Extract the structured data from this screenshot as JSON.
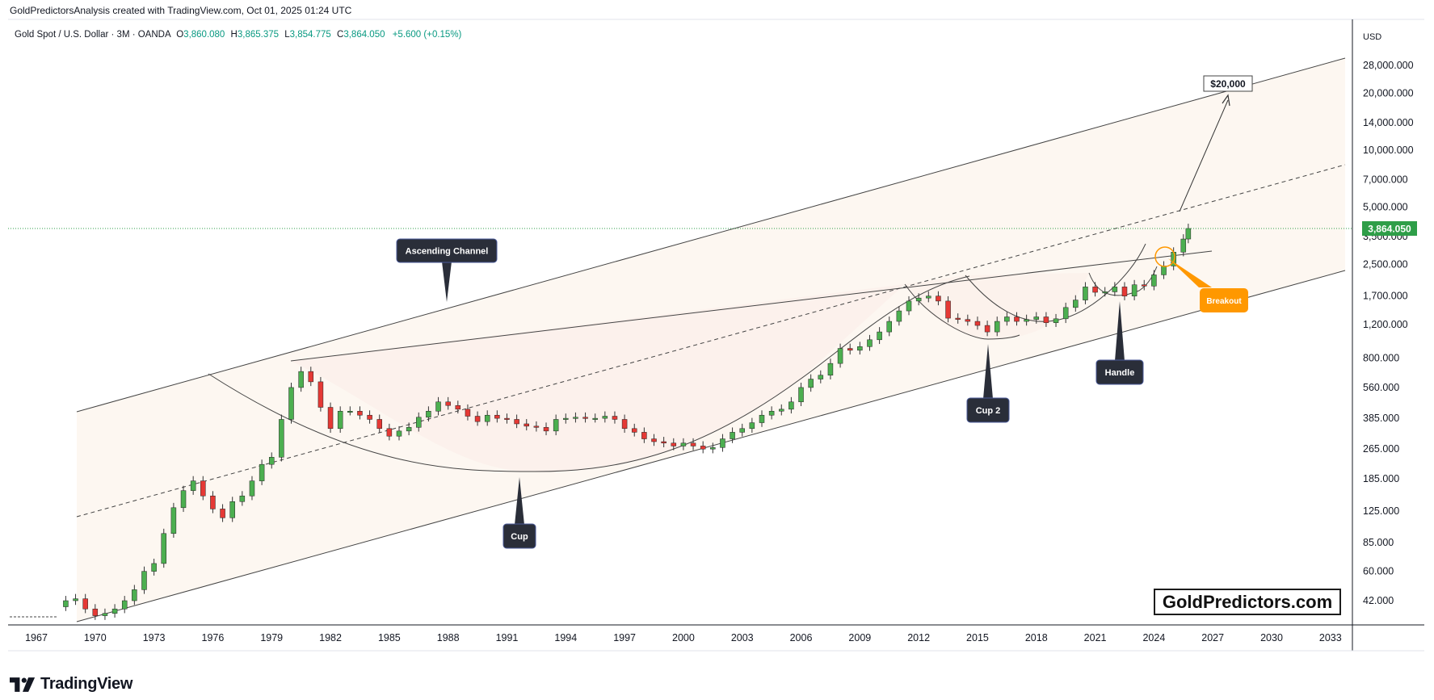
{
  "credit": "GoldPredictorsAnalysis created with TradingView.com, Oct 01, 2025 01:24 UTC",
  "header": {
    "symbol": "Gold Spot / U.S. Dollar · 3M · OANDA",
    "open_label": "O",
    "open": "3,860.080",
    "high_label": "H",
    "high": "3,865.375",
    "low_label": "L",
    "low": "3,854.775",
    "close_label": "C",
    "close": "3,864.050",
    "change": "+5.600 (+0.15%)"
  },
  "brand": {
    "tradingview": "TradingView",
    "watermark": "GoldPredictors.com"
  },
  "colors": {
    "up": "#26a69a",
    "down": "#ef5350",
    "up_fill": "#4caf50",
    "down_fill": "#e53935",
    "price_badge": "#2e9e48",
    "breakout": "#ff9800",
    "callout": "#2a2e39"
  },
  "chart_data": {
    "type": "candlestick",
    "title": "Gold Spot / U.S. Dollar · 3M · OANDA",
    "currency": "USD",
    "y_scale": "log",
    "y_ticks": [
      "28,000.000",
      "20,000.000",
      "14,000.000",
      "10,000.000",
      "7,000.000",
      "5,000.000",
      "3,500.000",
      "2,500.000",
      "1,700.000",
      "1,200.000",
      "800.000",
      "560.000",
      "385.000",
      "265.000",
      "185.000",
      "125.000",
      "85.000",
      "60.000",
      "42.000"
    ],
    "x_ticks": [
      "1967",
      "1970",
      "1973",
      "1976",
      "1979",
      "1982",
      "1985",
      "1988",
      "1991",
      "1994",
      "1997",
      "2000",
      "2003",
      "2006",
      "2009",
      "2012",
      "2015",
      "2018",
      "2021",
      "2024",
      "2027",
      "2030",
      "2033"
    ],
    "current_price": "3,864.050",
    "target_label": "$20,000",
    "annotations": [
      "Ascending Channel",
      "Cup",
      "Cup 2",
      "Handle",
      "Breakout"
    ],
    "price_path": [
      [
        1968.0,
        39
      ],
      [
        1968.5,
        42
      ],
      [
        1969.0,
        43
      ],
      [
        1969.5,
        38
      ],
      [
        1970.0,
        35
      ],
      [
        1970.5,
        36
      ],
      [
        1971.0,
        38
      ],
      [
        1971.5,
        42
      ],
      [
        1972.0,
        48
      ],
      [
        1972.5,
        60
      ],
      [
        1973.0,
        66
      ],
      [
        1973.5,
        95
      ],
      [
        1974.0,
        130
      ],
      [
        1974.5,
        160
      ],
      [
        1975.0,
        180
      ],
      [
        1975.5,
        150
      ],
      [
        1976.0,
        128
      ],
      [
        1976.5,
        115
      ],
      [
        1977.0,
        140
      ],
      [
        1977.5,
        150
      ],
      [
        1978.0,
        180
      ],
      [
        1978.5,
        220
      ],
      [
        1979.0,
        240
      ],
      [
        1979.5,
        380
      ],
      [
        1980.0,
        560
      ],
      [
        1980.5,
        680
      ],
      [
        1981.0,
        600
      ],
      [
        1981.5,
        440
      ],
      [
        1982.0,
        340
      ],
      [
        1982.5,
        420
      ],
      [
        1983.0,
        420
      ],
      [
        1983.5,
        400
      ],
      [
        1984.0,
        380
      ],
      [
        1984.5,
        340
      ],
      [
        1985.0,
        310
      ],
      [
        1985.5,
        330
      ],
      [
        1986.0,
        345
      ],
      [
        1986.5,
        390
      ],
      [
        1987.0,
        420
      ],
      [
        1987.5,
        470
      ],
      [
        1988.0,
        450
      ],
      [
        1988.5,
        430
      ],
      [
        1989.0,
        395
      ],
      [
        1989.5,
        370
      ],
      [
        1990.0,
        400
      ],
      [
        1990.5,
        385
      ],
      [
        1991.0,
        380
      ],
      [
        1991.5,
        360
      ],
      [
        1992.0,
        350
      ],
      [
        1992.5,
        345
      ],
      [
        1993.0,
        330
      ],
      [
        1993.5,
        380
      ],
      [
        1994.0,
        385
      ],
      [
        1994.5,
        390
      ],
      [
        1995.0,
        385
      ],
      [
        1995.5,
        385
      ],
      [
        1996.0,
        395
      ],
      [
        1996.5,
        380
      ],
      [
        1997.0,
        340
      ],
      [
        1997.5,
        325
      ],
      [
        1998.0,
        300
      ],
      [
        1998.5,
        290
      ],
      [
        1999.0,
        285
      ],
      [
        1999.5,
        275
      ],
      [
        2000.0,
        285
      ],
      [
        2000.5,
        275
      ],
      [
        2001.0,
        265
      ],
      [
        2001.5,
        270
      ],
      [
        2002.0,
        300
      ],
      [
        2002.5,
        325
      ],
      [
        2003.0,
        340
      ],
      [
        2003.5,
        365
      ],
      [
        2004.0,
        400
      ],
      [
        2004.5,
        420
      ],
      [
        2005.0,
        430
      ],
      [
        2005.5,
        470
      ],
      [
        2006.0,
        560
      ],
      [
        2006.5,
        620
      ],
      [
        2007.0,
        650
      ],
      [
        2007.5,
        750
      ],
      [
        2008.0,
        900
      ],
      [
        2008.5,
        880
      ],
      [
        2009.0,
        920
      ],
      [
        2009.5,
        1000
      ],
      [
        2010.0,
        1100
      ],
      [
        2010.5,
        1250
      ],
      [
        2011.0,
        1420
      ],
      [
        2011.5,
        1600
      ],
      [
        2012.0,
        1660
      ],
      [
        2012.5,
        1700
      ],
      [
        2013.0,
        1600
      ],
      [
        2013.5,
        1300
      ],
      [
        2014.0,
        1280
      ],
      [
        2014.5,
        1250
      ],
      [
        2015.0,
        1190
      ],
      [
        2015.5,
        1100
      ],
      [
        2016.0,
        1250
      ],
      [
        2016.5,
        1320
      ],
      [
        2017.0,
        1250
      ],
      [
        2017.5,
        1280
      ],
      [
        2018.0,
        1320
      ],
      [
        2018.5,
        1230
      ],
      [
        2019.0,
        1290
      ],
      [
        2019.5,
        1480
      ],
      [
        2020.0,
        1620
      ],
      [
        2020.5,
        1900
      ],
      [
        2021.0,
        1780
      ],
      [
        2021.5,
        1790
      ],
      [
        2022.0,
        1900
      ],
      [
        2022.5,
        1700
      ],
      [
        2023.0,
        1950
      ],
      [
        2023.5,
        1920
      ],
      [
        2024.0,
        2200
      ],
      [
        2024.5,
        2450
      ],
      [
        2025.0,
        2900
      ],
      [
        2025.5,
        3400
      ],
      [
        2025.75,
        3864
      ]
    ]
  }
}
